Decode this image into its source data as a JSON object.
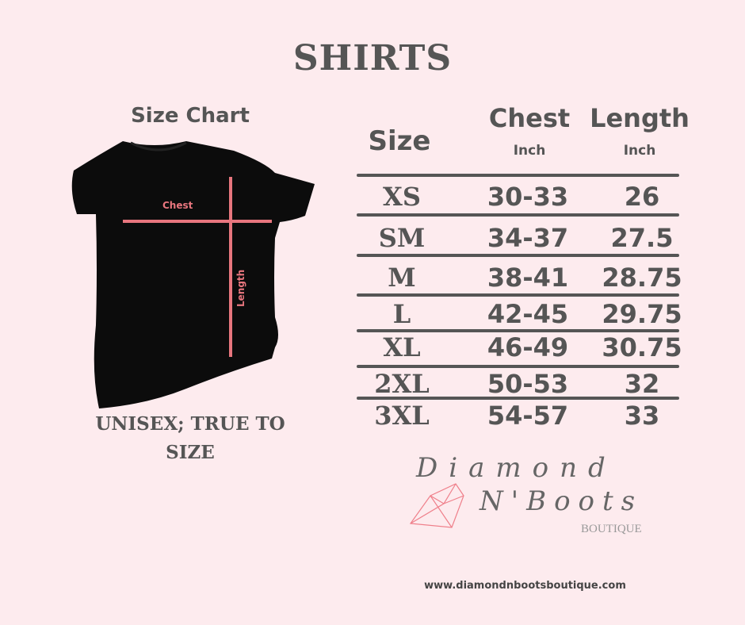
{
  "title": "SHIRTS",
  "chart_label": "Size Chart",
  "fit_note": "UNISEX; TRUE TO SIZE",
  "shirt": {
    "chest_label": "Chest",
    "length_label": "Length",
    "accent": "#e8767e"
  },
  "table": {
    "headers": {
      "size": "Size",
      "chest": "Chest",
      "length": "Length",
      "chest_unit": "Inch",
      "length_unit": "Inch"
    },
    "rows": [
      {
        "size": "XS",
        "chest": "30-33",
        "length": "26"
      },
      {
        "size": "SM",
        "chest": "34-37",
        "length": "27.5"
      },
      {
        "size": "M",
        "chest": "38-41",
        "length": "28.75"
      },
      {
        "size": "L",
        "chest": "42-45",
        "length": "29.75"
      },
      {
        "size": "XL",
        "chest": "46-49",
        "length": "30.75"
      },
      {
        "size": "2XL",
        "chest": "50-53",
        "length": "32"
      },
      {
        "size": "3XL",
        "chest": "54-57",
        "length": "33"
      }
    ]
  },
  "logo": {
    "line1": "Diamond",
    "line2": "N'Boots",
    "line3": "BOUTIQUE"
  },
  "url": "www.diamondnbootsboutique.com"
}
